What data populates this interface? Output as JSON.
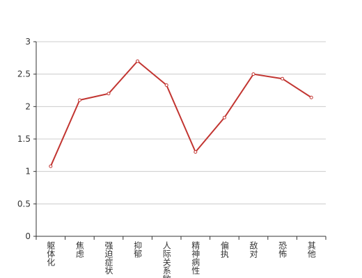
{
  "chart_data": {
    "type": "line",
    "categories": [
      "躯体化",
      "焦虑",
      "强迫症状",
      "抑郁",
      "人际关系敏感",
      "精神病性",
      "偏执",
      "敌对",
      "恐怖",
      "其他"
    ],
    "values": [
      1.08,
      2.1,
      2.2,
      2.7,
      2.33,
      1.3,
      1.83,
      2.5,
      2.43,
      2.14
    ],
    "color": "#c23531",
    "ylim": [
      0,
      3
    ],
    "yticks": [
      0,
      0.5,
      1,
      1.5,
      2,
      2.5,
      3
    ],
    "grid": true
  }
}
